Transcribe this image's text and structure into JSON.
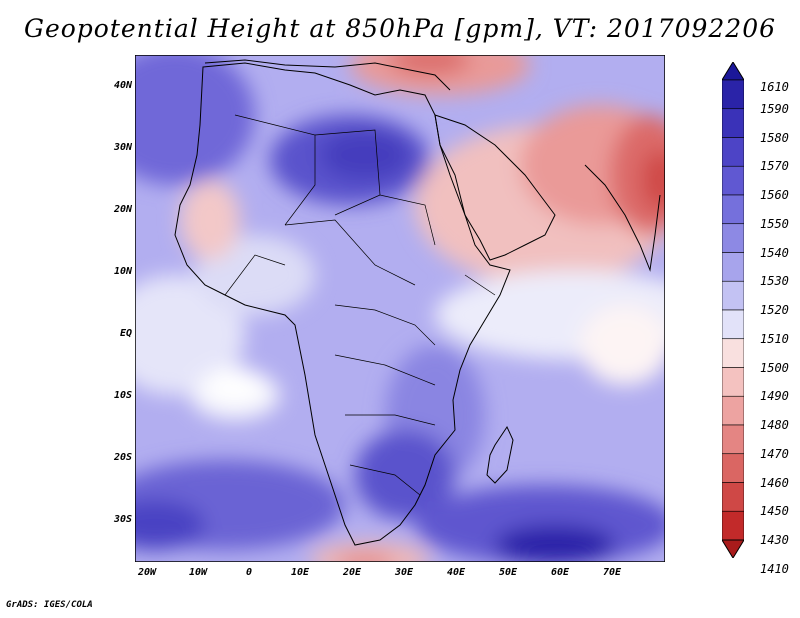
{
  "title": "Geopotential Height at 850hPa [gpm], VT: 2017092206",
  "footer": "GrADS: IGES/COLA",
  "lat_ticks": [
    "40N",
    "30N",
    "20N",
    "10N",
    "EQ",
    "10S",
    "20S",
    "30S"
  ],
  "lon_ticks": [
    "20W",
    "10W",
    "0",
    "10E",
    "20E",
    "30E",
    "40E",
    "50E",
    "60E",
    "70E"
  ],
  "colorbar": {
    "labels": [
      "1610",
      "1590",
      "1580",
      "1570",
      "1560",
      "1550",
      "1540",
      "1530",
      "1520",
      "1510",
      "1500",
      "1490",
      "1480",
      "1470",
      "1460",
      "1450",
      "1430",
      "1410"
    ],
    "colors": [
      "#1b1799",
      "#2a23a8",
      "#3a32b8",
      "#4d44c6",
      "#6058d2",
      "#7570dc",
      "#8d89e4",
      "#a7a4ec",
      "#c3c2f3",
      "#e2e2f9",
      "#f9e0df",
      "#f4c2c0",
      "#eda3a1",
      "#e48583",
      "#da6663",
      "#cf4846",
      "#c22a2a",
      "#a91b1b"
    ]
  },
  "map": {
    "region": "Africa and Arabian Peninsula",
    "lon_range": [
      -25,
      80
    ],
    "lat_range": [
      -37,
      45
    ]
  }
}
